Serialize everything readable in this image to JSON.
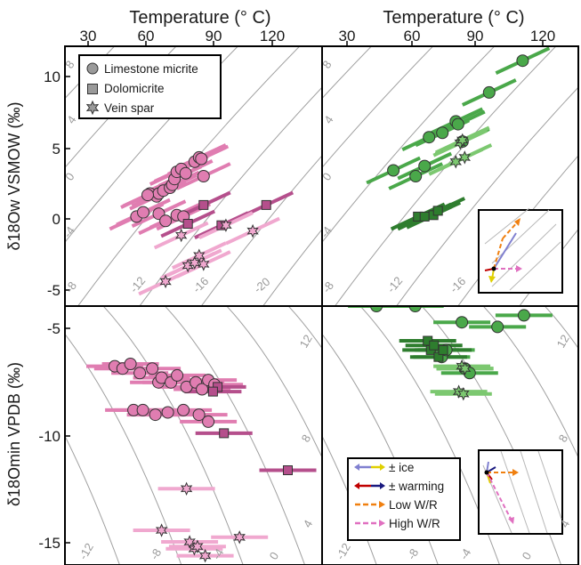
{
  "figure": {
    "top_axis_title_left": "Temperature (° C)",
    "top_axis_title_right": "Temperature (° C)",
    "top_ticks_left": [
      "30",
      "60",
      "90",
      "120"
    ],
    "top_ticks_right": [
      "30",
      "60",
      "90",
      "120"
    ],
    "y_title_top": "δ18Ow VSMOW (‰)",
    "y_title_bottom": "δ18Omin VPDB (‰)",
    "y_ticks_top": [
      "10",
      "5",
      "0",
      "-5"
    ],
    "y_ticks_bottom": [
      "-5",
      "-10",
      "-15"
    ],
    "legend_materials": [
      "Limestone micrite",
      "Dolomicrite",
      "Vein spar"
    ],
    "legend_model": [
      "± ice",
      "± warming",
      "Low W/R",
      "High W/R"
    ],
    "contour_labels_top_left": [
      "8",
      "4",
      "0",
      "-4",
      "-8",
      "-12",
      "-16",
      "-20"
    ],
    "contour_labels_top_right": [
      "8",
      "4",
      "0",
      "-4",
      "-8",
      "-12",
      "-16"
    ],
    "contour_labels_bottom_left": [
      "-12",
      "-8",
      "-4",
      "0",
      "12",
      "8",
      "4"
    ],
    "contour_labels_bottom_right": [
      "-12",
      "-8",
      "-4",
      "0",
      "12",
      "8",
      "4"
    ],
    "colors": {
      "pink_dark": "#b54f8c",
      "pink_mid": "#e07db1",
      "pink_light": "#f0a8cf",
      "green_dark": "#2e7d2e",
      "green_mid": "#4aa84a",
      "green_light": "#7cc870",
      "contour": "#a0a0a0",
      "ice_a": "#8080d0",
      "ice_b": "#e0d000",
      "warm_a": "#c00000",
      "warm_b": "#1a1a80",
      "lowwr": "#f08010",
      "highwr": "#e070c0"
    }
  },
  "chart_data": [
    {
      "type": "scatter",
      "panel": "top-left",
      "xlabel": "Temperature (° C)",
      "ylabel": "δ18Ow VSMOW (‰)",
      "xlim": [
        20,
        135
      ],
      "ylim": [
        -6,
        12
      ],
      "series": [
        {
          "name": "Limestone micrite",
          "x": [
            52,
            55,
            58,
            61,
            62,
            64,
            67,
            68,
            69,
            70,
            72,
            74,
            78,
            80,
            81,
            82,
            57,
            62,
            65,
            70,
            73
          ],
          "y": [
            0.2,
            0.5,
            1.8,
            1.6,
            1.8,
            2.0,
            2.2,
            2.4,
            2.8,
            3.3,
            3.5,
            3.2,
            4.0,
            4.3,
            4.2,
            3.0,
            1.7,
            0.4,
            -0.1,
            0.3,
            0.2
          ]
        },
        {
          "name": "Dolomicrite",
          "x": [
            75,
            82,
            90,
            110
          ],
          "y": [
            -0.3,
            1.0,
            -0.4,
            1.0
          ]
        },
        {
          "name": "Vein spar",
          "x": [
            65,
            72,
            75,
            78,
            80,
            82,
            92,
            104
          ],
          "y": [
            -4.3,
            -1.1,
            -3.2,
            -3.0,
            -2.5,
            -3.1,
            -0.4,
            -0.8
          ]
        }
      ]
    },
    {
      "type": "scatter",
      "panel": "top-right",
      "xlabel": "Temperature (° C)",
      "xlim": [
        20,
        135
      ],
      "ylim": [
        -6,
        12
      ],
      "series": [
        {
          "name": "Limestone micrite",
          "x": [
            52,
            62,
            66,
            68,
            74,
            80,
            81,
            83,
            95,
            110
          ],
          "y": [
            3.4,
            3.0,
            3.7,
            5.7,
            6.0,
            6.8,
            6.6,
            5.4,
            8.8,
            11.0
          ]
        },
        {
          "name": "Dolomicrite",
          "x": [
            63,
            66,
            70,
            72
          ],
          "y": [
            0.2,
            0.2,
            0.3,
            0.6
          ]
        },
        {
          "name": "Vein spar",
          "x": [
            80,
            82,
            83,
            84
          ],
          "y": [
            4.0,
            5.3,
            5.5,
            4.3
          ]
        }
      ]
    },
    {
      "type": "scatter",
      "panel": "bottom-left",
      "ylabel": "δ18Omin VPDB (‰)",
      "xlim": [
        -14,
        2.5
      ],
      "ylim": [
        -15.5,
        -4.3
      ],
      "series": [
        {
          "name": "Limestone micrite",
          "x": [
            -10.8,
            -10.3,
            -9.8,
            -9.2,
            -8.4,
            -8.0,
            -7.8,
            -7.2,
            -6.8,
            -6.2,
            -5.6,
            -5.2,
            -4.8,
            -4.4,
            -9.6,
            -9.0,
            -8.2,
            -7.4,
            -6.4,
            -5.4,
            -4.8
          ],
          "y": [
            -6.9,
            -7.0,
            -6.8,
            -7.2,
            -7.0,
            -7.6,
            -7.4,
            -7.6,
            -7.3,
            -7.8,
            -7.6,
            -7.9,
            -7.5,
            -7.7,
            -8.8,
            -8.8,
            -9.0,
            -8.9,
            -8.8,
            -9.0,
            -9.3
          ]
        },
        {
          "name": "Dolomicrite",
          "x": [
            -4.2,
            -3.8,
            -4.5,
            0.3
          ],
          "y": [
            -7.8,
            -9.8,
            -8.0,
            -11.4
          ]
        },
        {
          "name": "Vein spar",
          "x": [
            -6.2,
            -7.8,
            -6.0,
            -5.7,
            -5.5,
            -5.0,
            -2.8
          ],
          "y": [
            -12.2,
            -14.0,
            -14.5,
            -14.8,
            -14.7,
            -15.1,
            -14.3
          ]
        }
      ]
    },
    {
      "type": "scatter",
      "panel": "bottom-right",
      "xlim": [
        -14,
        2.5
      ],
      "ylim": [
        -15.5,
        -4.3
      ],
      "series": [
        {
          "name": "Limestone micrite",
          "x": [
            -10.5,
            -8.0,
            -5.0,
            -2.7,
            -1.0,
            -6.3,
            -6.0,
            -4.8,
            -4.5
          ],
          "y": [
            -4.3,
            -4.3,
            -5.0,
            -5.2,
            -4.7,
            -6.5,
            -6.2,
            -7.0,
            -7.2
          ]
        },
        {
          "name": "Dolomicrite",
          "x": [
            -7.2,
            -7.0,
            -6.8,
            -6.5,
            -6.2
          ],
          "y": [
            -5.8,
            -6.2,
            -6.0,
            -6.5,
            -6.2
          ]
        },
        {
          "name": "Vein spar",
          "x": [
            -5.0,
            -4.8,
            -5.2,
            -4.9
          ],
          "y": [
            -6.9,
            -7.0,
            -8.0,
            -8.1
          ]
        }
      ]
    }
  ]
}
